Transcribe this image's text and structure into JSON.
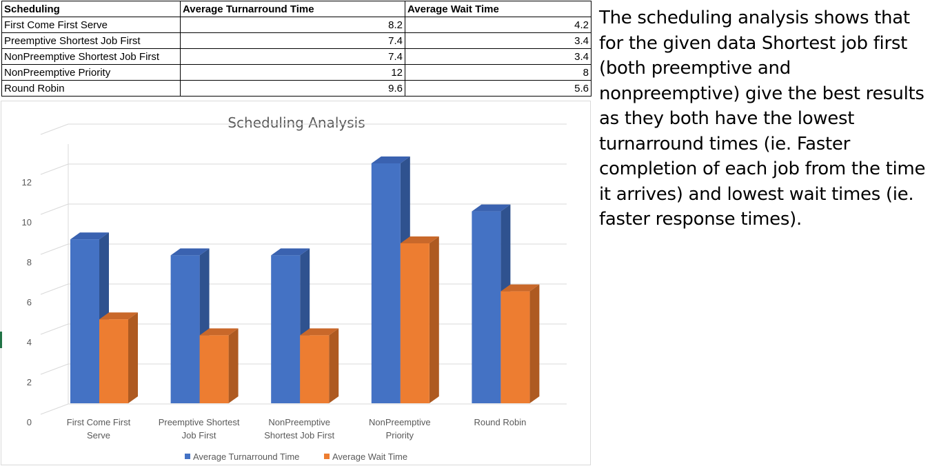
{
  "table": {
    "headers": [
      "Scheduling",
      "Average Turnarround Time",
      "Average Wait Time"
    ],
    "rows": [
      [
        "First Come First Serve",
        "8.2",
        "4.2"
      ],
      [
        "Preemptive Shortest Job First",
        "7.4",
        "3.4"
      ],
      [
        "NonPreemptive Shortest Job First",
        "7.4",
        "3.4"
      ],
      [
        "NonPreemptive Priority",
        "12",
        "8"
      ],
      [
        "Round Robin",
        "9.6",
        "5.6"
      ]
    ]
  },
  "note": "The scheduling analysis shows that for the given data Shortest job first (both preemptive and nonpreemptive) give the best results as they both have the lowest turnarround times (ie. Faster completion of each job from the time it arrives) and lowest wait times (ie. faster response times).",
  "chart_data": {
    "type": "bar",
    "style": "3d-clustered-column",
    "title": "Scheduling Analysis",
    "categories": [
      [
        "First Come First",
        "Serve"
      ],
      [
        "Preemptive Shortest",
        "Job First"
      ],
      [
        "NonPreemptive",
        "Shortest Job First"
      ],
      [
        "NonPreemptive",
        "Priority"
      ],
      [
        "Round Robin"
      ]
    ],
    "series": [
      {
        "name": "Average Turnarround Time",
        "values": [
          8.2,
          7.4,
          7.4,
          12,
          9.6
        ],
        "color": "#4472C4",
        "side_color": "#2F528F",
        "top_color": "#3A62B0"
      },
      {
        "name": "Average Wait Time",
        "values": [
          4.2,
          3.4,
          3.4,
          8,
          5.6
        ],
        "color": "#ED7D31",
        "side_color": "#AE5A21",
        "top_color": "#C9682A"
      }
    ],
    "yticks": [
      0,
      2,
      4,
      6,
      8,
      10,
      12
    ],
    "ylim": [
      0,
      12
    ],
    "grid": true,
    "legend": "bottom"
  }
}
